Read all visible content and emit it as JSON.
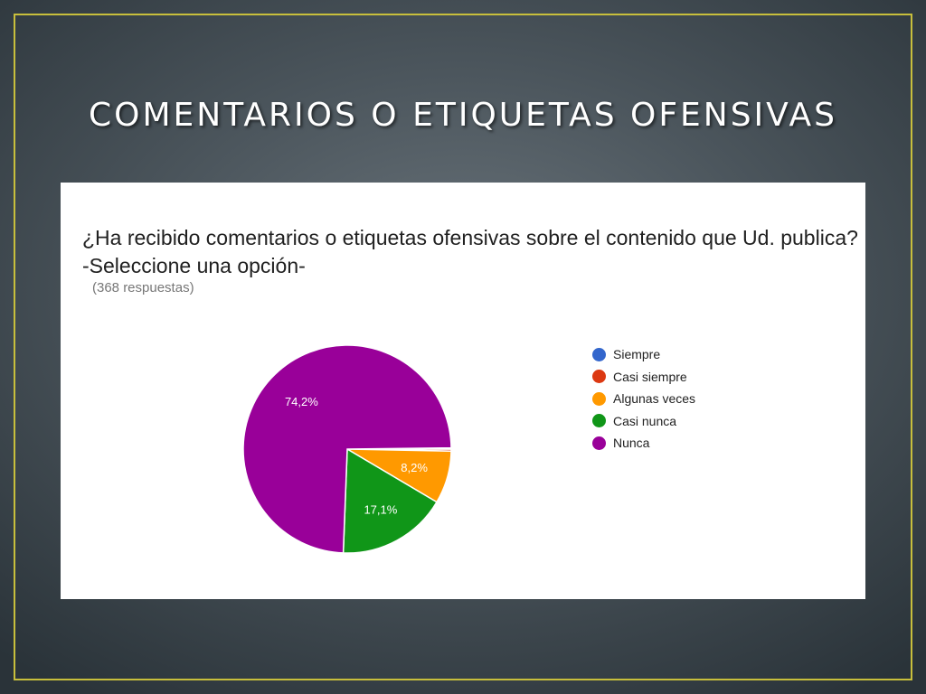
{
  "slide": {
    "title": "COMENTARIOS O ETIQUETAS OFENSIVAS"
  },
  "chart_data": {
    "type": "pie",
    "title": "¿Ha recibido comentarios o etiquetas ofensivas sobre el contenido que Ud. publica? -Seleccione una opción-",
    "subtitle": "(368 respuestas)",
    "legend_position": "right",
    "slices": [
      {
        "name": "Siempre",
        "value": 0.2,
        "color": "#3366cc",
        "label": ""
      },
      {
        "name": "Casi siempre",
        "value": 0.3,
        "color": "#dc3912",
        "label": ""
      },
      {
        "name": "Algunas veces",
        "value": 8.2,
        "color": "#ff9900",
        "label": "8,2%"
      },
      {
        "name": "Casi nunca",
        "value": 17.1,
        "color": "#109618",
        "label": "17,1%"
      },
      {
        "name": "Nunca",
        "value": 74.2,
        "color": "#990099",
        "label": "74,2%"
      }
    ]
  }
}
